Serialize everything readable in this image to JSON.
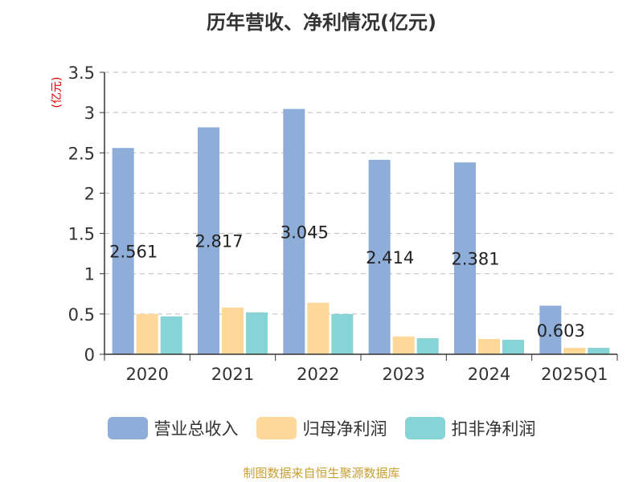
{
  "chart_data": {
    "type": "bar",
    "title": "历年营收、净利情况(亿元)",
    "ylabel": "(亿元)",
    "ylim": [
      0,
      3.5
    ],
    "yticks": [
      0,
      0.5,
      1,
      1.5,
      2,
      2.5,
      3,
      3.5
    ],
    "ytick_labels": [
      "0",
      "0.5",
      "1",
      "1.5",
      "2",
      "2.5",
      "3",
      "3.5"
    ],
    "grid": true,
    "legend_position": "bottom",
    "categories": [
      "2020",
      "2021",
      "2022",
      "2023",
      "2024",
      "2025Q1"
    ],
    "series": [
      {
        "name": "营业总收入",
        "color": "#8eaed9",
        "values": [
          2.561,
          2.817,
          3.045,
          2.414,
          2.381,
          0.603
        ],
        "labels": [
          "2.561",
          "2.817",
          "3.045",
          "2.414",
          "2.381",
          "0.603"
        ]
      },
      {
        "name": "归母净利润",
        "color": "#fdd898",
        "values": [
          0.5,
          0.58,
          0.64,
          0.22,
          0.19,
          0.08
        ]
      },
      {
        "name": "扣非净利润",
        "color": "#86d4d6",
        "values": [
          0.47,
          0.52,
          0.5,
          0.2,
          0.18,
          0.08
        ]
      }
    ]
  },
  "footer": {
    "source": "制图数据来自恒生聚源数据库"
  }
}
